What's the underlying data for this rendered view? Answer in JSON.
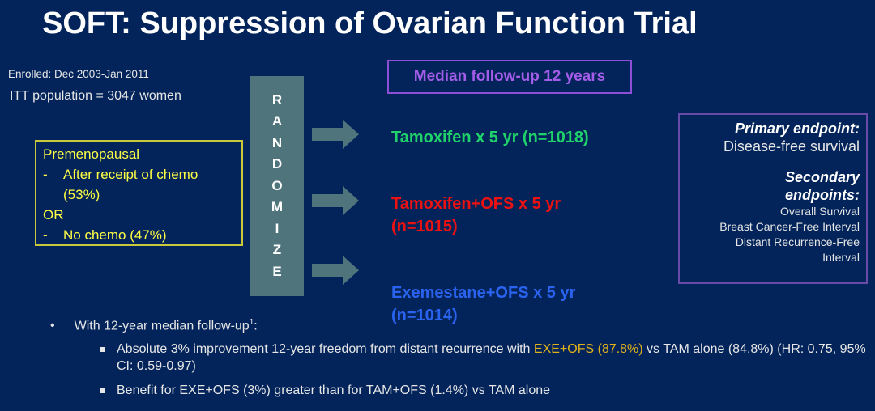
{
  "title": "SOFT: Suppression of Ovarian Function Trial",
  "enrolled": "Enrolled: Dec 2003-Jan 2011",
  "itt": "ITT population  = 3047 women",
  "eligibility": {
    "heading": "Premenopausal",
    "items": [
      {
        "dash": "-",
        "text": "After receipt of chemo (53%)"
      },
      {
        "dash": "-",
        "text": "No chemo (47%)"
      }
    ],
    "or": "OR"
  },
  "randomize": [
    "R",
    "A",
    "N",
    "D",
    "O",
    "M",
    "I",
    "Z",
    "E"
  ],
  "follow_up": "Median follow-up 12 years",
  "arms": [
    {
      "label": "Tamoxifen  x 5 yr (n=1018)",
      "color": "#1fd36a"
    },
    {
      "label": "Tamoxifen+OFS  x 5 yr",
      "n": "(n=1015)",
      "color": "#ee1111"
    },
    {
      "label": "Exemestane+OFS  x 5 yr",
      "n": "(n=1014)",
      "color": "#2a63f0"
    }
  ],
  "endpoints": {
    "primary_heading": "Primary endpoint:",
    "primary": "Disease-free survival",
    "secondary_heading_1": "Secondary",
    "secondary_heading_2": "endpoints:",
    "secondary": [
      "Overall Survival",
      "Breast Cancer-Free Interval",
      "Distant Recurrence-Free",
      "Interval"
    ]
  },
  "bullets": {
    "main": "With 12-year median follow-up",
    "sup": "1",
    "main_end": ":",
    "sub1_a": "Absolute 3% improvement 12-year freedom from distant recurrence with ",
    "sub1_hl": "EXE+OFS (87.8%)",
    "sub1_b": " vs TAM alone (84.8%) (HR: 0.75, 95% CI: 0.59-0.97)",
    "sub2": "Benefit for EXE+OFS (3%) greater than for TAM+OFS (1.4%) vs TAM alone",
    "highlight_color": "#e0b21a"
  }
}
